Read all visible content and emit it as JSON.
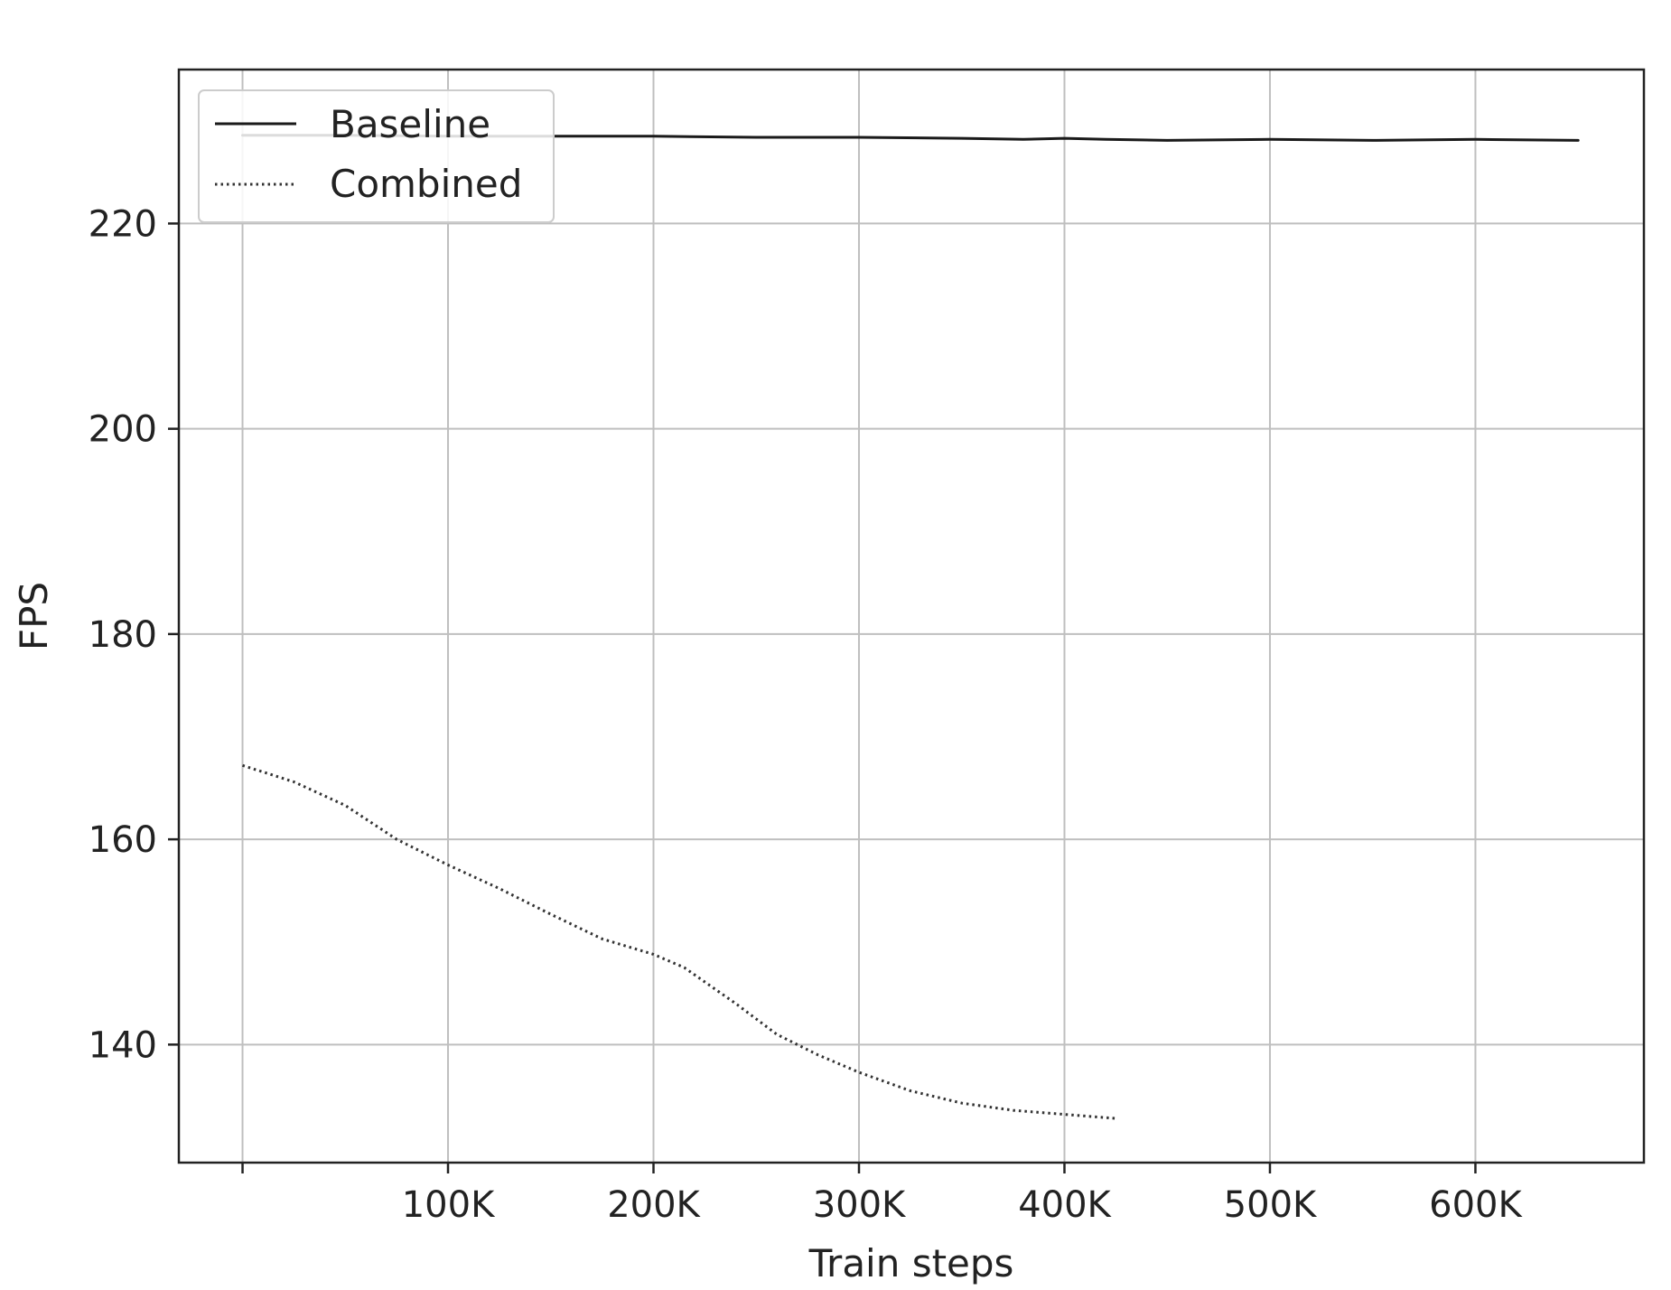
{
  "chart_data": {
    "type": "line",
    "title": "",
    "xlabel": "Train steps",
    "ylabel": "FPS",
    "xlim": [
      -31000,
      682000
    ],
    "ylim": [
      128.5,
      235
    ],
    "grid": true,
    "legend_position": "upper-left",
    "x_ticks": [
      0,
      100000,
      200000,
      300000,
      400000,
      500000,
      600000
    ],
    "x_tick_labels": [
      "",
      "100K",
      "200K",
      "300K",
      "400K",
      "500K",
      "600K"
    ],
    "y_ticks": [
      140,
      160,
      180,
      200,
      220
    ],
    "y_tick_labels": [
      "140",
      "160",
      "180",
      "200",
      "220"
    ],
    "series": [
      {
        "name": "Baseline",
        "style": "solid",
        "color": "#1a1a1a",
        "x": [
          0,
          50000,
          100000,
          150000,
          200000,
          250000,
          300000,
          350000,
          380000,
          400000,
          420000,
          450000,
          500000,
          550000,
          600000,
          650000
        ],
        "y": [
          228.6,
          228.6,
          228.5,
          228.5,
          228.5,
          228.4,
          228.4,
          228.3,
          228.2,
          228.3,
          228.2,
          228.1,
          228.2,
          228.1,
          228.2,
          228.1
        ]
      },
      {
        "name": "Combined",
        "style": "dotted",
        "color": "#333333",
        "x": [
          0,
          25000,
          50000,
          75000,
          100000,
          125000,
          150000,
          175000,
          200000,
          215000,
          240000,
          260000,
          280000,
          300000,
          325000,
          350000,
          375000,
          400000,
          425000
        ],
        "y": [
          167.2,
          165.6,
          163.3,
          160.0,
          157.5,
          155.2,
          152.7,
          150.3,
          148.8,
          147.5,
          144.0,
          141.0,
          139.0,
          137.3,
          135.5,
          134.3,
          133.6,
          133.2,
          132.8
        ]
      }
    ]
  }
}
